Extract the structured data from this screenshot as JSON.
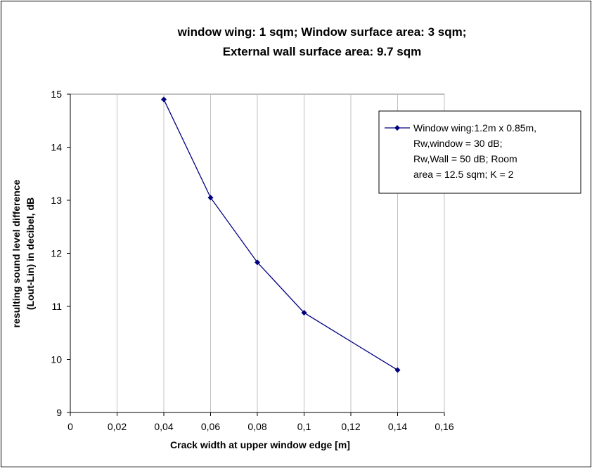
{
  "chart_data": {
    "type": "line",
    "title_lines": [
      "window wing: 1 sqm; Window surface area: 3 sqm;",
      "External wall surface area: 9.7 sqm"
    ],
    "xlabel": "Crack width at upper window edge [m]",
    "ylabel_lines": [
      "resulting sound level difference",
      "(Lout-Lin) in decibel, dB"
    ],
    "xlim": [
      0,
      0.16
    ],
    "ylim": [
      9,
      15
    ],
    "x_ticks": [
      0,
      0.02,
      0.04,
      0.06,
      0.08,
      0.1,
      0.12,
      0.14,
      0.16
    ],
    "x_tick_labels": [
      "0",
      "0,02",
      "0,04",
      "0,06",
      "0,08",
      "0,1",
      "0,12",
      "0,14",
      "0,16"
    ],
    "y_ticks": [
      9,
      10,
      11,
      12,
      13,
      14,
      15
    ],
    "y_tick_labels": [
      "9",
      "10",
      "11",
      "12",
      "13",
      "14",
      "15"
    ],
    "grid": "vertical",
    "legend_position": "top-right",
    "series": [
      {
        "name_lines": [
          "Window wing:1.2m x 0.85m,",
          "Rw,window = 30 dB;",
          "Rw,Wall = 50 dB; Room",
          "area = 12.5 sqm; K = 2"
        ],
        "color": "#000080",
        "marker": "diamond",
        "x": [
          0.04,
          0.06,
          0.08,
          0.1,
          0.14
        ],
        "y": [
          14.9,
          13.05,
          11.83,
          10.88,
          9.8
        ]
      }
    ]
  }
}
